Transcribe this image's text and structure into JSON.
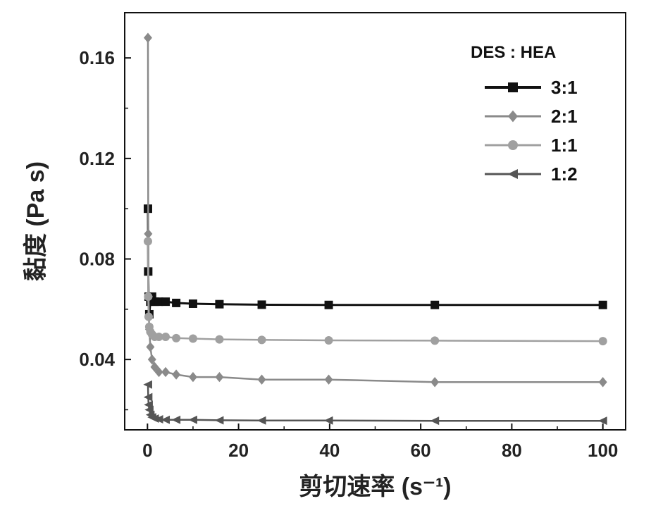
{
  "chart_data": {
    "type": "line",
    "title": "",
    "xlabel": "剪切速率 (s⁻¹)",
    "ylabel": "黏度 (Pa s)",
    "xlim": [
      -5,
      105
    ],
    "ylim": [
      0.012,
      0.178
    ],
    "xticks": [
      0,
      20,
      40,
      60,
      80,
      100
    ],
    "yticks": [
      0.04,
      0.08,
      0.12,
      0.16
    ],
    "xtick_labels": [
      "0",
      "20",
      "40",
      "60",
      "80",
      "100"
    ],
    "ytick_labels": [
      "0.04",
      "0.08",
      "0.12",
      "0.16"
    ],
    "legend_title": "DES : HEA",
    "legend_position": "top-right",
    "grid": false,
    "series": [
      {
        "name": "3:1",
        "marker": "square",
        "color": "#111111",
        "x": [
          0.1,
          0.16,
          0.25,
          0.4,
          0.63,
          1.0,
          1.58,
          2.51,
          3.98,
          6.31,
          10,
          15.8,
          25.1,
          39.8,
          63.1,
          100
        ],
        "y": [
          0.1,
          0.075,
          0.065,
          0.058,
          0.063,
          0.065,
          0.063,
          0.063,
          0.063,
          0.0625,
          0.0622,
          0.062,
          0.0618,
          0.0617,
          0.0617,
          0.0617
        ]
      },
      {
        "name": "2:1",
        "marker": "diamond",
        "color": "#8a8a8a",
        "x": [
          0.1,
          0.16,
          0.25,
          0.4,
          0.63,
          1.0,
          1.58,
          2.51,
          3.98,
          6.31,
          10,
          15.8,
          25.1,
          39.8,
          63.1,
          100
        ],
        "y": [
          0.168,
          0.09,
          0.065,
          0.052,
          0.045,
          0.04,
          0.037,
          0.035,
          0.035,
          0.034,
          0.033,
          0.033,
          0.032,
          0.032,
          0.031,
          0.031
        ]
      },
      {
        "name": "1:1",
        "marker": "circle",
        "color": "#a0a0a0",
        "x": [
          0.1,
          0.16,
          0.25,
          0.4,
          0.63,
          1.0,
          1.58,
          2.51,
          3.98,
          6.31,
          10,
          15.8,
          25.1,
          39.8,
          63.1,
          100
        ],
        "y": [
          0.087,
          0.065,
          0.057,
          0.053,
          0.051,
          0.05,
          0.049,
          0.049,
          0.049,
          0.0485,
          0.0483,
          0.048,
          0.0478,
          0.0476,
          0.0475,
          0.0473
        ]
      },
      {
        "name": "1:2",
        "marker": "triangle-left",
        "color": "#555555",
        "x": [
          0.1,
          0.16,
          0.25,
          0.4,
          0.63,
          1.0,
          1.58,
          2.51,
          3.98,
          6.31,
          10,
          15.8,
          25.1,
          39.8,
          63.1,
          100
        ],
        "y": [
          0.03,
          0.025,
          0.022,
          0.02,
          0.018,
          0.017,
          0.0165,
          0.0162,
          0.016,
          0.016,
          0.016,
          0.0158,
          0.0157,
          0.0157,
          0.0156,
          0.0156
        ]
      }
    ]
  }
}
